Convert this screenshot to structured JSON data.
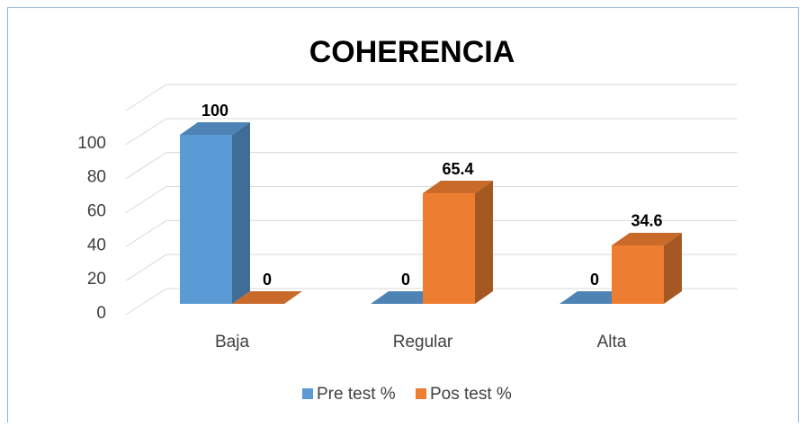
{
  "chart_data": {
    "type": "bar3d",
    "title": "COHERENCIA",
    "categories": [
      "Baja",
      "Regular",
      "Alta"
    ],
    "series": [
      {
        "name": "Pre test %",
        "color": "#5b9bd5",
        "values": [
          100,
          0,
          0
        ]
      },
      {
        "name": "Pos test %",
        "color": "#ed7d31",
        "values": [
          0,
          65.4,
          34.6
        ]
      }
    ],
    "ylim": [
      0,
      120
    ],
    "yticks": [
      0,
      20,
      40,
      60,
      80,
      100
    ],
    "grid": true,
    "legend": "bottom"
  }
}
